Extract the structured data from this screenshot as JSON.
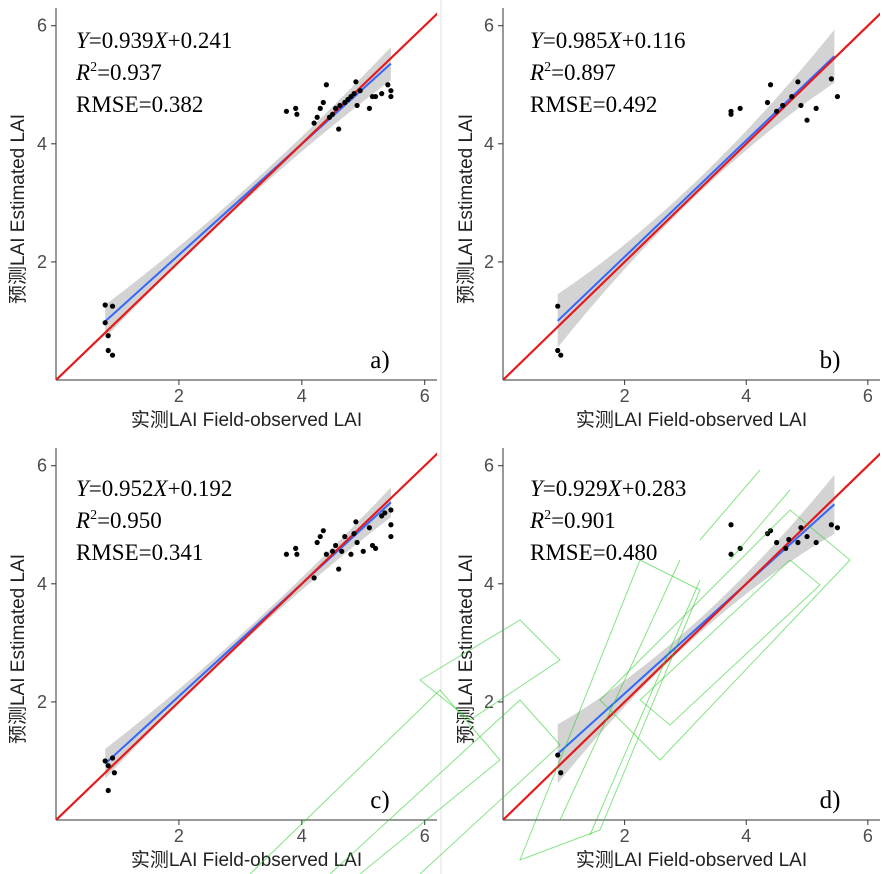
{
  "chart_data": [
    {
      "type": "scatter",
      "panel_label": "a)",
      "xlabel": "实测LAI Field-observed LAI",
      "ylabel": "预测LAI Estimated LAI",
      "xlim": [
        0,
        6.2
      ],
      "ylim": [
        0,
        6.3
      ],
      "x_ticks": [
        2,
        4,
        6
      ],
      "y_ticks": [
        2,
        4,
        6
      ],
      "grid": false,
      "equation": {
        "y_label": "Y",
        "slope_text": "=0.939",
        "x_label": "X",
        "intercept_text": "+0.241",
        "r2_label": "R",
        "r2_sup": "2",
        "r2_value": "=0.937",
        "rmse": "RMSE=0.382"
      },
      "regression": {
        "slope": 0.939,
        "intercept": 0.241,
        "x_range": [
          0.8,
          5.45
        ],
        "ci_halfwidth_ends": 0.28,
        "ci_halfwidth_mid": 0.1
      },
      "one_to_one_line": true,
      "points": [
        [
          0.8,
          1.27
        ],
        [
          0.92,
          1.25
        ],
        [
          0.8,
          0.97
        ],
        [
          0.85,
          0.75
        ],
        [
          0.85,
          0.5
        ],
        [
          0.92,
          0.42
        ],
        [
          3.75,
          4.55
        ],
        [
          3.9,
          4.6
        ],
        [
          3.92,
          4.5
        ],
        [
          4.2,
          4.35
        ],
        [
          4.25,
          4.45
        ],
        [
          4.3,
          4.6
        ],
        [
          4.35,
          4.7
        ],
        [
          4.4,
          5.0
        ],
        [
          4.45,
          4.45
        ],
        [
          4.5,
          4.5
        ],
        [
          4.55,
          4.6
        ],
        [
          4.6,
          4.25
        ],
        [
          4.62,
          4.65
        ],
        [
          4.7,
          4.7
        ],
        [
          4.75,
          4.75
        ],
        [
          4.8,
          4.8
        ],
        [
          4.85,
          4.85
        ],
        [
          4.88,
          5.05
        ],
        [
          4.9,
          4.65
        ],
        [
          4.95,
          4.9
        ],
        [
          5.1,
          4.6
        ],
        [
          5.15,
          4.8
        ],
        [
          5.2,
          4.8
        ],
        [
          5.3,
          4.85
        ],
        [
          5.4,
          5.0
        ],
        [
          5.45,
          4.8
        ],
        [
          5.45,
          4.9
        ]
      ]
    },
    {
      "type": "scatter",
      "panel_label": "b)",
      "xlabel": "实测LAI Field-observed LAI",
      "ylabel": "预测LAI Estimated LAI",
      "xlim": [
        0,
        6.2
      ],
      "ylim": [
        0,
        6.3
      ],
      "x_ticks": [
        2,
        4,
        6
      ],
      "y_ticks": [
        2,
        4,
        6
      ],
      "grid": false,
      "equation": {
        "y_label": "Y",
        "slope_text": "=0.985",
        "x_label": "X",
        "intercept_text": "+0.116",
        "r2_label": "R",
        "r2_sup": "2",
        "r2_value": "=0.897",
        "rmse": "RMSE=0.492"
      },
      "regression": {
        "slope": 0.985,
        "intercept": 0.116,
        "x_range": [
          0.9,
          5.45
        ],
        "ci_halfwidth_ends": 0.45,
        "ci_halfwidth_mid": 0.12
      },
      "one_to_one_line": true,
      "points": [
        [
          0.9,
          1.25
        ],
        [
          0.9,
          0.5
        ],
        [
          0.95,
          0.42
        ],
        [
          3.75,
          4.55
        ],
        [
          3.75,
          4.5
        ],
        [
          3.9,
          4.6
        ],
        [
          4.35,
          4.7
        ],
        [
          4.4,
          5.0
        ],
        [
          4.5,
          4.55
        ],
        [
          4.6,
          4.65
        ],
        [
          4.75,
          4.8
        ],
        [
          4.85,
          5.05
        ],
        [
          4.9,
          4.65
        ],
        [
          5.0,
          4.4
        ],
        [
          5.15,
          4.6
        ],
        [
          5.4,
          5.1
        ],
        [
          5.5,
          4.8
        ]
      ]
    },
    {
      "type": "scatter",
      "panel_label": "c)",
      "xlabel": "实测LAI Field-observed LAI",
      "ylabel": "预测LAI Estimated LAI",
      "xlim": [
        0,
        6.2
      ],
      "ylim": [
        0,
        6.3
      ],
      "x_ticks": [
        2,
        4,
        6
      ],
      "y_ticks": [
        2,
        4,
        6
      ],
      "grid": false,
      "equation": {
        "y_label": "Y",
        "slope_text": "=0.952",
        "x_label": "X",
        "intercept_text": "+0.192",
        "r2_label": "R",
        "r2_sup": "2",
        "r2_value": "=0.950",
        "rmse": "RMSE=0.341"
      },
      "regression": {
        "slope": 0.952,
        "intercept": 0.192,
        "x_range": [
          0.8,
          5.45
        ],
        "ci_halfwidth_ends": 0.25,
        "ci_halfwidth_mid": 0.08
      },
      "one_to_one_line": true,
      "points": [
        [
          0.8,
          1.0
        ],
        [
          0.85,
          0.92
        ],
        [
          0.92,
          1.05
        ],
        [
          0.95,
          0.8
        ],
        [
          0.85,
          0.5
        ],
        [
          3.75,
          4.5
        ],
        [
          3.9,
          4.6
        ],
        [
          3.92,
          4.5
        ],
        [
          4.2,
          4.1
        ],
        [
          4.25,
          4.7
        ],
        [
          4.3,
          4.8
        ],
        [
          4.35,
          4.9
        ],
        [
          4.4,
          4.5
        ],
        [
          4.5,
          4.55
        ],
        [
          4.55,
          4.65
        ],
        [
          4.6,
          4.25
        ],
        [
          4.65,
          4.55
        ],
        [
          4.7,
          4.8
        ],
        [
          4.8,
          4.5
        ],
        [
          4.85,
          4.85
        ],
        [
          4.88,
          5.05
        ],
        [
          4.9,
          4.7
        ],
        [
          5.0,
          4.55
        ],
        [
          5.1,
          4.95
        ],
        [
          5.15,
          4.65
        ],
        [
          5.2,
          4.6
        ],
        [
          5.3,
          5.15
        ],
        [
          5.35,
          5.2
        ],
        [
          5.45,
          5.0
        ],
        [
          5.45,
          4.8
        ],
        [
          5.45,
          5.25
        ]
      ]
    },
    {
      "type": "scatter",
      "panel_label": "d)",
      "xlabel": "实测LAI Field-observed LAI",
      "ylabel": "预测LAI Estimated LAI",
      "xlim": [
        0,
        6.2
      ],
      "ylim": [
        0,
        6.3
      ],
      "x_ticks": [
        2,
        4,
        6
      ],
      "y_ticks": [
        2,
        4,
        6
      ],
      "grid": false,
      "equation": {
        "y_label": "Y",
        "slope_text": "=0.929",
        "x_label": "X",
        "intercept_text": "+0.283",
        "r2_label": "R",
        "r2_sup": "2",
        "r2_value": "=0.901",
        "rmse": "RMSE=0.480"
      },
      "regression": {
        "slope": 0.929,
        "intercept": 0.283,
        "x_range": [
          0.9,
          5.45
        ],
        "ci_halfwidth_ends": 0.5,
        "ci_halfwidth_mid": 0.12
      },
      "one_to_one_line": true,
      "points": [
        [
          0.9,
          1.1
        ],
        [
          0.95,
          0.8
        ],
        [
          3.75,
          5.0
        ],
        [
          3.75,
          4.5
        ],
        [
          3.9,
          4.6
        ],
        [
          4.35,
          4.85
        ],
        [
          4.4,
          4.9
        ],
        [
          4.5,
          4.7
        ],
        [
          4.65,
          4.6
        ],
        [
          4.7,
          4.75
        ],
        [
          4.85,
          4.7
        ],
        [
          4.9,
          4.95
        ],
        [
          5.0,
          4.8
        ],
        [
          5.15,
          4.7
        ],
        [
          5.4,
          5.0
        ],
        [
          5.5,
          4.95
        ]
      ]
    }
  ],
  "colors": {
    "one_to_one": "#e41a1c",
    "regression": "#3366ff",
    "confidence_band": "#c8c8c8",
    "points": "#000000",
    "watermark": "#22cc22"
  }
}
